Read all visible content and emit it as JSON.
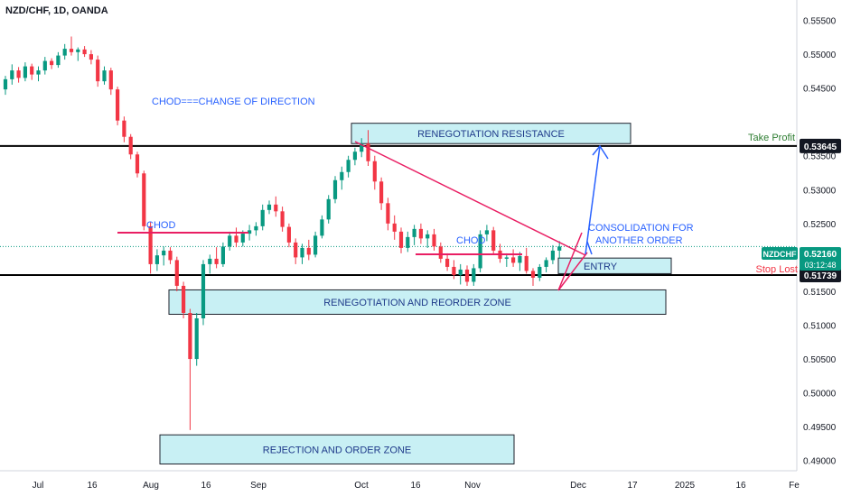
{
  "header": {
    "symbol_line": "NZD/CHF, 1D, OANDA"
  },
  "colors": {
    "up": "#089981",
    "down": "#f23645",
    "zone_fill": "#c8f0f4",
    "zone_border": "#1e222d",
    "annotation_blue": "#2962ff",
    "trend_pink": "#e91e63",
    "take_profit": "#2e7d32",
    "stop_loss": "#f23645",
    "price_badge": "#089981",
    "level_badge": "#131722"
  },
  "chart_data": {
    "type": "candlestick",
    "symbol": "NZDCHF",
    "timeframe": "1D",
    "x_ticks": [
      "Jul",
      "16",
      "Aug",
      "16",
      "Sep",
      "Oct",
      "16",
      "Nov",
      "Dec",
      "17",
      "2025",
      "16",
      "Fe"
    ],
    "y_ticks": [
      "0.55500",
      "0.55000",
      "0.54500",
      "0.53500",
      "0.53000",
      "0.52500",
      "0.51500",
      "0.51000",
      "0.50500",
      "0.50000",
      "0.49500",
      "0.49000"
    ],
    "ylim": [
      0.4885,
      0.558
    ],
    "price_badge": {
      "label": "NZDCHF",
      "price": "0.52160",
      "countdown": "03:12:48",
      "value": 0.5216
    },
    "levels": [
      {
        "name": "take-profit",
        "price": 0.53645,
        "badge": "0.53645",
        "label": "Take Profit"
      },
      {
        "name": "stop-loss",
        "price": 0.51739,
        "badge": "0.51739",
        "label": "Stop Lost"
      }
    ],
    "zones": [
      {
        "label": "RENEGOTIATION RESISTANCE",
        "price_top": 0.5398,
        "price_bottom": 0.5368
      },
      {
        "label": "ENTRY",
        "price_top": 0.5199,
        "price_bottom": 0.5176
      },
      {
        "label": "RENEGOTIATION AND REORDER ZONE",
        "price_top": 0.5152,
        "price_bottom": 0.5116
      },
      {
        "label": "REJECTION AND ORDER ZONE",
        "price_top": 0.4938,
        "price_bottom": 0.4895
      }
    ],
    "annotations": [
      "CHOD===CHANGE OF DIRECTION",
      "CHOD",
      "CHOD",
      "CONSOLIDATION FOR",
      "ANOTHER ORDER"
    ],
    "candles": [
      [
        0.5448,
        0.5468,
        0.544,
        0.5463
      ],
      [
        0.5463,
        0.5485,
        0.5455,
        0.5476
      ],
      [
        0.5476,
        0.5481,
        0.5458,
        0.5465
      ],
      [
        0.5465,
        0.5488,
        0.546,
        0.5482
      ],
      [
        0.5482,
        0.5486,
        0.5462,
        0.547
      ],
      [
        0.547,
        0.5482,
        0.546,
        0.5476
      ],
      [
        0.5476,
        0.5496,
        0.547,
        0.549
      ],
      [
        0.549,
        0.5494,
        0.5478,
        0.5484
      ],
      [
        0.5484,
        0.5503,
        0.548,
        0.5498
      ],
      [
        0.5498,
        0.5515,
        0.5492,
        0.5508
      ],
      [
        0.5508,
        0.5526,
        0.5498,
        0.5503
      ],
      [
        0.5503,
        0.551,
        0.549,
        0.5507
      ],
      [
        0.5507,
        0.5512,
        0.5496,
        0.55
      ],
      [
        0.55,
        0.5506,
        0.5485,
        0.5492
      ],
      [
        0.5492,
        0.5498,
        0.5452,
        0.546
      ],
      [
        0.546,
        0.5482,
        0.5455,
        0.5476
      ],
      [
        0.5476,
        0.548,
        0.544,
        0.5448
      ],
      [
        0.5448,
        0.5452,
        0.5395,
        0.5402
      ],
      [
        0.5402,
        0.5408,
        0.537,
        0.5378
      ],
      [
        0.5378,
        0.5382,
        0.5345,
        0.5352
      ],
      [
        0.5352,
        0.5356,
        0.5318,
        0.5324
      ],
      [
        0.5324,
        0.5328,
        0.524,
        0.5246
      ],
      [
        0.5246,
        0.5252,
        0.5176,
        0.519
      ],
      [
        0.519,
        0.5212,
        0.518,
        0.5203
      ],
      [
        0.5203,
        0.5216,
        0.5188,
        0.521
      ],
      [
        0.521,
        0.5215,
        0.519,
        0.5196
      ],
      [
        0.5196,
        0.5201,
        0.515,
        0.5158
      ],
      [
        0.5158,
        0.5164,
        0.511,
        0.5118
      ],
      [
        0.5118,
        0.5124,
        0.4945,
        0.505
      ],
      [
        0.505,
        0.5118,
        0.504,
        0.511
      ],
      [
        0.511,
        0.5196,
        0.51,
        0.519
      ],
      [
        0.519,
        0.5204,
        0.5176,
        0.5198
      ],
      [
        0.5198,
        0.5215,
        0.5184,
        0.519
      ],
      [
        0.519,
        0.5222,
        0.5186,
        0.5216
      ],
      [
        0.5216,
        0.5238,
        0.521,
        0.5232
      ],
      [
        0.5232,
        0.5244,
        0.5215,
        0.5222
      ],
      [
        0.5222,
        0.524,
        0.5216,
        0.5235
      ],
      [
        0.5235,
        0.5248,
        0.5225,
        0.524
      ],
      [
        0.524,
        0.5252,
        0.5232,
        0.5246
      ],
      [
        0.5246,
        0.5278,
        0.524,
        0.527
      ],
      [
        0.527,
        0.5284,
        0.5264,
        0.5278
      ],
      [
        0.5278,
        0.529,
        0.526,
        0.5268
      ],
      [
        0.5268,
        0.5275,
        0.5238,
        0.5245
      ],
      [
        0.5245,
        0.525,
        0.5215,
        0.5222
      ],
      [
        0.5222,
        0.5228,
        0.519,
        0.52
      ],
      [
        0.52,
        0.522,
        0.519,
        0.5214
      ],
      [
        0.5214,
        0.5226,
        0.5196,
        0.5204
      ],
      [
        0.5204,
        0.5238,
        0.52,
        0.5232
      ],
      [
        0.5232,
        0.5262,
        0.5228,
        0.5256
      ],
      [
        0.5256,
        0.5292,
        0.525,
        0.5286
      ],
      [
        0.5286,
        0.532,
        0.528,
        0.5314
      ],
      [
        0.5314,
        0.5334,
        0.53,
        0.5326
      ],
      [
        0.5326,
        0.535,
        0.5318,
        0.5344
      ],
      [
        0.5344,
        0.5362,
        0.5336,
        0.5356
      ],
      [
        0.5356,
        0.5376,
        0.5348,
        0.5368
      ],
      [
        0.5368,
        0.5388,
        0.5335,
        0.5342
      ],
      [
        0.5342,
        0.535,
        0.53,
        0.5312
      ],
      [
        0.5312,
        0.5318,
        0.527,
        0.528
      ],
      [
        0.528,
        0.5288,
        0.524,
        0.525
      ],
      [
        0.525,
        0.5262,
        0.5226,
        0.5238
      ],
      [
        0.5238,
        0.5244,
        0.5206,
        0.5214
      ],
      [
        0.5214,
        0.5238,
        0.5208,
        0.523
      ],
      [
        0.523,
        0.5248,
        0.5218,
        0.5242
      ],
      [
        0.5242,
        0.525,
        0.522,
        0.5228
      ],
      [
        0.5228,
        0.524,
        0.5214,
        0.5234
      ],
      [
        0.5234,
        0.5242,
        0.521,
        0.5216
      ],
      [
        0.5216,
        0.5222,
        0.5192,
        0.5198
      ],
      [
        0.5198,
        0.5206,
        0.518,
        0.5186
      ],
      [
        0.5186,
        0.5196,
        0.5168,
        0.5174
      ],
      [
        0.5174,
        0.519,
        0.516,
        0.5182
      ],
      [
        0.5182,
        0.5188,
        0.5158,
        0.5164
      ],
      [
        0.5164,
        0.519,
        0.5158,
        0.5184
      ],
      [
        0.5184,
        0.524,
        0.5178,
        0.5234
      ],
      [
        0.5234,
        0.5248,
        0.5224,
        0.524
      ],
      [
        0.524,
        0.5245,
        0.5205,
        0.521
      ],
      [
        0.521,
        0.522,
        0.5192,
        0.5198
      ],
      [
        0.5198,
        0.5206,
        0.5186,
        0.52
      ],
      [
        0.52,
        0.5212,
        0.5186,
        0.5192
      ],
      [
        0.5192,
        0.5208,
        0.518,
        0.5202
      ],
      [
        0.5202,
        0.5214,
        0.5176,
        0.518
      ],
      [
        0.518,
        0.5184,
        0.5158,
        0.517
      ],
      [
        0.517,
        0.519,
        0.5165,
        0.5186
      ],
      [
        0.5186,
        0.52,
        0.5178,
        0.5196
      ],
      [
        0.5196,
        0.5218,
        0.519,
        0.521
      ],
      [
        0.521,
        0.5224,
        0.5198,
        0.5216
      ]
    ]
  }
}
